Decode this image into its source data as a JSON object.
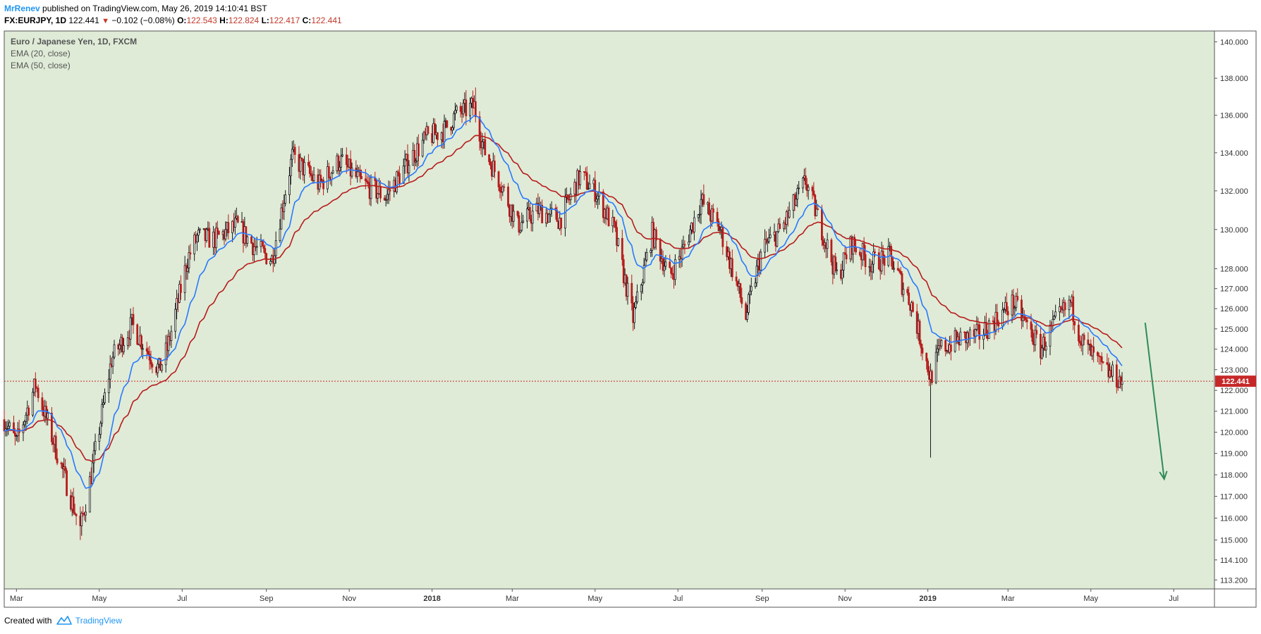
{
  "header": {
    "author": "MrRenev",
    "published": "published on TradingView.com, May 26, 2019 14:10:41 BST"
  },
  "symbol_line": {
    "symbol": "FX:EURJPY, 1D",
    "last": "122.441",
    "change": "−0.102 (−0.08%)",
    "o_label": "O:",
    "o_value": "122.543",
    "h_label": "H:",
    "h_value": "122.824",
    "l_label": "L:",
    "l_value": "122.417",
    "c_label": "C:",
    "c_value": "122.441"
  },
  "legend": {
    "title": "Euro / Japanese Yen, 1D, FXCM",
    "ema20": "EMA (20, close)",
    "ema50": "EMA (50, close)"
  },
  "footer": {
    "created_with": "Created with",
    "brand": "TradingView"
  },
  "colors": {
    "plot_bg": "#dfebd7",
    "ema20": "#2979ff",
    "ema50": "#b71c1c",
    "bear": "#b71c1c",
    "bull": "#1a1a1a",
    "price_line": "#c62828",
    "arrow": "#2e8b57"
  },
  "chart_data": {
    "type": "candlestick",
    "title": "Euro / Japanese Yen, 1D, FXCM",
    "y_scale": "log",
    "ylim": [
      112.8,
      140.6
    ],
    "y_ticks": [
      "113.200",
      "114.100",
      "115.000",
      "116.000",
      "117.000",
      "118.000",
      "119.000",
      "120.000",
      "121.000",
      "122.000",
      "123.000",
      "124.000",
      "125.000",
      "126.000",
      "127.000",
      "128.000",
      "130.000",
      "132.000",
      "134.000",
      "136.000",
      "138.000",
      "140.000"
    ],
    "x_ticks": [
      "Mar",
      "May",
      "Jul",
      "Sep",
      "Nov",
      "2018",
      "Mar",
      "May",
      "Jul",
      "Sep",
      "Nov",
      "2019",
      "Mar",
      "May",
      "Jul"
    ],
    "x_tick_dates": [
      "2017-03-01",
      "2017-05-01",
      "2017-07-01",
      "2017-09-01",
      "2017-11-01",
      "2018-01-01",
      "2018-03-01",
      "2018-05-01",
      "2018-07-01",
      "2018-09-01",
      "2018-11-01",
      "2019-01-01",
      "2019-03-01",
      "2019-05-01",
      "2019-07-01"
    ],
    "xlim": [
      "2017-02-20",
      "2019-07-31"
    ],
    "last_price": "122.441",
    "close_anchors": [
      {
        "date": "2017-02-20",
        "close": 120.6
      },
      {
        "date": "2017-03-01",
        "close": 119.5
      },
      {
        "date": "2017-03-15",
        "close": 122.3
      },
      {
        "date": "2017-04-01",
        "close": 118.8
      },
      {
        "date": "2017-04-17",
        "close": 115.5
      },
      {
        "date": "2017-04-25",
        "close": 118.0
      },
      {
        "date": "2017-05-10",
        "close": 123.5
      },
      {
        "date": "2017-05-25",
        "close": 125.2
      },
      {
        "date": "2017-06-14",
        "close": 123.0
      },
      {
        "date": "2017-06-20",
        "close": 124.0
      },
      {
        "date": "2017-07-05",
        "close": 128.5
      },
      {
        "date": "2017-07-12",
        "close": 129.6
      },
      {
        "date": "2017-07-25",
        "close": 129.5
      },
      {
        "date": "2017-08-10",
        "close": 130.2
      },
      {
        "date": "2017-08-25",
        "close": 129.0
      },
      {
        "date": "2017-09-05",
        "close": 128.5
      },
      {
        "date": "2017-09-20",
        "close": 133.8
      },
      {
        "date": "2017-10-10",
        "close": 132.3
      },
      {
        "date": "2017-10-25",
        "close": 133.6
      },
      {
        "date": "2017-11-10",
        "close": 132.4
      },
      {
        "date": "2017-11-28",
        "close": 131.7
      },
      {
        "date": "2017-12-15",
        "close": 133.6
      },
      {
        "date": "2017-12-28",
        "close": 134.8
      },
      {
        "date": "2018-01-10",
        "close": 135.2
      },
      {
        "date": "2018-01-18",
        "close": 136.0
      },
      {
        "date": "2018-02-01",
        "close": 136.5
      },
      {
        "date": "2018-02-08",
        "close": 134.2
      },
      {
        "date": "2018-02-20",
        "close": 132.5
      },
      {
        "date": "2018-03-05",
        "close": 130.2
      },
      {
        "date": "2018-03-20",
        "close": 131.0
      },
      {
        "date": "2018-04-05",
        "close": 130.5
      },
      {
        "date": "2018-04-20",
        "close": 132.8
      },
      {
        "date": "2018-05-01",
        "close": 132.0
      },
      {
        "date": "2018-05-15",
        "close": 130.0
      },
      {
        "date": "2018-05-29",
        "close": 125.5
      },
      {
        "date": "2018-06-12",
        "close": 129.8
      },
      {
        "date": "2018-06-25",
        "close": 127.6
      },
      {
        "date": "2018-07-05",
        "close": 129.0
      },
      {
        "date": "2018-07-18",
        "close": 131.5
      },
      {
        "date": "2018-08-01",
        "close": 130.0
      },
      {
        "date": "2018-08-10",
        "close": 128.0
      },
      {
        "date": "2018-08-20",
        "close": 125.6
      },
      {
        "date": "2018-09-01",
        "close": 129.0
      },
      {
        "date": "2018-09-15",
        "close": 130.0
      },
      {
        "date": "2018-10-03",
        "close": 132.5
      },
      {
        "date": "2018-10-15",
        "close": 130.0
      },
      {
        "date": "2018-10-26",
        "close": 127.6
      },
      {
        "date": "2018-11-06",
        "close": 129.3
      },
      {
        "date": "2018-11-20",
        "close": 128.3
      },
      {
        "date": "2018-12-04",
        "close": 128.6
      },
      {
        "date": "2018-12-20",
        "close": 126.2
      },
      {
        "date": "2019-01-03",
        "close": 122.6
      },
      {
        "date": "2019-01-10",
        "close": 124.0
      },
      {
        "date": "2019-01-25",
        "close": 124.5
      },
      {
        "date": "2019-02-08",
        "close": 124.7
      },
      {
        "date": "2019-02-22",
        "close": 125.6
      },
      {
        "date": "2019-03-05",
        "close": 126.3
      },
      {
        "date": "2019-03-12",
        "close": 125.5
      },
      {
        "date": "2019-03-25",
        "close": 124.0
      },
      {
        "date": "2019-04-05",
        "close": 125.3
      },
      {
        "date": "2019-04-16",
        "close": 126.3
      },
      {
        "date": "2019-04-25",
        "close": 124.3
      },
      {
        "date": "2019-05-10",
        "close": 123.0
      },
      {
        "date": "2019-05-20",
        "close": 122.6
      },
      {
        "date": "2019-05-24",
        "close": 122.441
      }
    ],
    "wick_extremes": [
      {
        "date": "2017-04-17",
        "low": 115.0
      },
      {
        "date": "2018-02-02",
        "high": 137.5
      },
      {
        "date": "2018-05-29",
        "low": 124.9
      },
      {
        "date": "2019-01-03",
        "low": 118.8
      }
    ],
    "annotation_arrow": {
      "from": {
        "date": "2019-06-10",
        "price": 125.3
      },
      "to": {
        "date": "2019-06-24",
        "price": 117.8
      }
    }
  }
}
